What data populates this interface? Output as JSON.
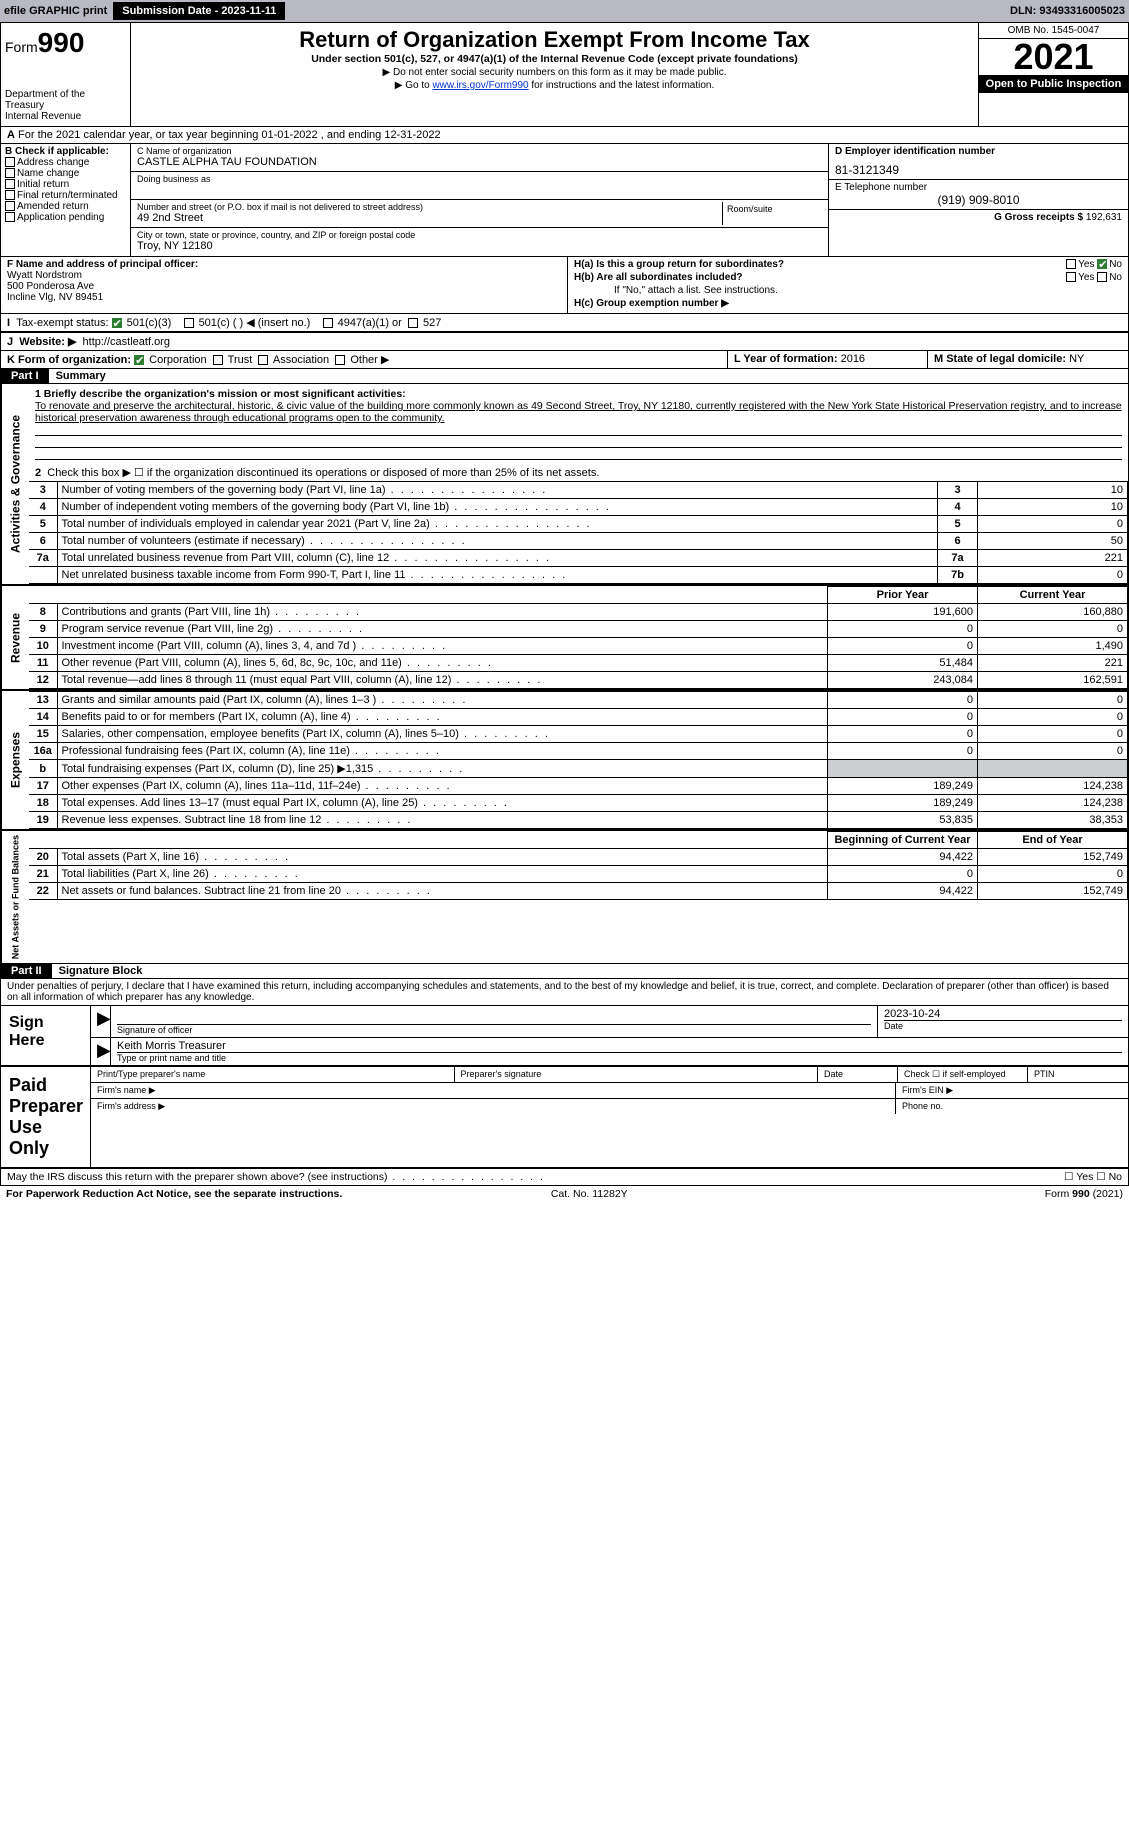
{
  "topbar": {
    "efile": "efile GRAPHIC print",
    "submission_label": "Submission Date - 2023-11-11",
    "dln_label": "DLN: 93493316005023"
  },
  "header": {
    "form_label": "Form",
    "form_num": "990",
    "dept": "Department of the Treasury",
    "irs": "Internal Revenue",
    "title": "Return of Organization Exempt From Income Tax",
    "subtitle": "Under section 501(c), 527, or 4947(a)(1) of the Internal Revenue Code (except private foundations)",
    "warn": "▶ Do not enter social security numbers on this form as it may be made public.",
    "goto_pre": "▶ Go to ",
    "goto_link": "www.irs.gov/Form990",
    "goto_post": " for instructions and the latest information.",
    "omb": "OMB No. 1545-0047",
    "year": "2021",
    "open": "Open to Public Inspection"
  },
  "A": {
    "text": "For the 2021 calendar year, or tax year beginning 01-01-2022    , and ending 12-31-2022"
  },
  "B": {
    "hdr": "B Check if applicable:",
    "opts": [
      "Address change",
      "Name change",
      "Initial return",
      "Final return/terminated",
      "Amended return",
      "Application pending"
    ]
  },
  "C": {
    "name_lbl": "C Name of organization",
    "name": "CASTLE ALPHA TAU FOUNDATION",
    "dba_lbl": "Doing business as",
    "dba": "",
    "street_lbl": "Number and street (or P.O. box if mail is not delivered to street address)",
    "room_lbl": "Room/suite",
    "street": "49 2nd Street",
    "city_lbl": "City or town, state or province, country, and ZIP or foreign postal code",
    "city": "Troy, NY  12180"
  },
  "D": {
    "lbl": "D Employer identification number",
    "val": "81-3121349"
  },
  "E": {
    "lbl": "E Telephone number",
    "val": "(919) 909-8010"
  },
  "G": {
    "lbl": "G Gross receipts $",
    "val": "192,631"
  },
  "F": {
    "lbl": "F  Name and address of principal officer:",
    "name": "Wyatt Nordstrom",
    "addr1": "500 Ponderosa Ave",
    "addr2": "Incline Vlg, NV  89451"
  },
  "H": {
    "a_lbl": "H(a)  Is this a group return for subordinates?",
    "b_lbl": "H(b)  Are all subordinates included?",
    "b_note": "If \"No,\" attach a list. See instructions.",
    "c_lbl": "H(c)  Group exemption number ▶"
  },
  "I": {
    "lbl": "Tax-exempt status:",
    "opts": [
      "501(c)(3)",
      "501(c) (   ) ◀ (insert no.)",
      "4947(a)(1) or",
      "527"
    ]
  },
  "J": {
    "lbl": "Website: ▶",
    "val": "http://castleatf.org"
  },
  "K": {
    "lbl": "K Form of organization:",
    "opts": [
      "Corporation",
      "Trust",
      "Association",
      "Other ▶"
    ]
  },
  "L": {
    "lbl": "L Year of formation:",
    "val": "2016"
  },
  "M": {
    "lbl": "M State of legal domicile:",
    "val": "NY"
  },
  "part1": {
    "hdr": "Part I",
    "title": "Summary",
    "line1_lbl": "1  Briefly describe the organization's mission or most significant activities:",
    "mission": "To renovate and preserve the architectural, historic, & civic value of the building more commonly known as 49 Second Street, Troy, NY 12180, currently registered with the New York State Historical Preservation registry, and to increase historical preservation awareness through educational programs open to the community.",
    "line2": "Check this box ▶ ☐  if the organization discontinued its operations or disposed of more than 25% of its net assets.",
    "vtab_gov": "Activities & Governance",
    "vtab_rev": "Revenue",
    "vtab_exp": "Expenses",
    "vtab_net": "Net Assets or Fund Balances",
    "rows_gov": [
      {
        "n": "3",
        "d": "Number of voting members of the governing body (Part VI, line 1a)",
        "k": "3",
        "v": "10"
      },
      {
        "n": "4",
        "d": "Number of independent voting members of the governing body (Part VI, line 1b)",
        "k": "4",
        "v": "10"
      },
      {
        "n": "5",
        "d": "Total number of individuals employed in calendar year 2021 (Part V, line 2a)",
        "k": "5",
        "v": "0"
      },
      {
        "n": "6",
        "d": "Total number of volunteers (estimate if necessary)",
        "k": "6",
        "v": "50"
      },
      {
        "n": "7a",
        "d": "Total unrelated business revenue from Part VIII, column (C), line 12",
        "k": "7a",
        "v": "221"
      },
      {
        "n": "",
        "d": "Net unrelated business taxable income from Form 990-T, Part I, line 11",
        "k": "7b",
        "v": "0"
      }
    ],
    "colhdr_prior": "Prior Year",
    "colhdr_curr": "Current Year",
    "rows_rev": [
      {
        "n": "8",
        "d": "Contributions and grants (Part VIII, line 1h)",
        "p": "191,600",
        "c": "160,880"
      },
      {
        "n": "9",
        "d": "Program service revenue (Part VIII, line 2g)",
        "p": "0",
        "c": "0"
      },
      {
        "n": "10",
        "d": "Investment income (Part VIII, column (A), lines 3, 4, and 7d )",
        "p": "0",
        "c": "1,490"
      },
      {
        "n": "11",
        "d": "Other revenue (Part VIII, column (A), lines 5, 6d, 8c, 9c, 10c, and 11e)",
        "p": "51,484",
        "c": "221"
      },
      {
        "n": "12",
        "d": "Total revenue—add lines 8 through 11 (must equal Part VIII, column (A), line 12)",
        "p": "243,084",
        "c": "162,591"
      }
    ],
    "rows_exp": [
      {
        "n": "13",
        "d": "Grants and similar amounts paid (Part IX, column (A), lines 1–3 )",
        "p": "0",
        "c": "0"
      },
      {
        "n": "14",
        "d": "Benefits paid to or for members (Part IX, column (A), line 4)",
        "p": "0",
        "c": "0"
      },
      {
        "n": "15",
        "d": "Salaries, other compensation, employee benefits (Part IX, column (A), lines 5–10)",
        "p": "0",
        "c": "0"
      },
      {
        "n": "16a",
        "d": "Professional fundraising fees (Part IX, column (A), line 11e)",
        "p": "0",
        "c": "0"
      },
      {
        "n": "b",
        "d": "Total fundraising expenses (Part IX, column (D), line 25) ▶1,315",
        "p": "",
        "c": "",
        "shade": true
      },
      {
        "n": "17",
        "d": "Other expenses (Part IX, column (A), lines 11a–11d, 11f–24e)",
        "p": "189,249",
        "c": "124,238"
      },
      {
        "n": "18",
        "d": "Total expenses. Add lines 13–17 (must equal Part IX, column (A), line 25)",
        "p": "189,249",
        "c": "124,238"
      },
      {
        "n": "19",
        "d": "Revenue less expenses. Subtract line 18 from line 12",
        "p": "53,835",
        "c": "38,353"
      }
    ],
    "colhdr_beg": "Beginning of Current Year",
    "colhdr_end": "End of Year",
    "rows_net": [
      {
        "n": "20",
        "d": "Total assets (Part X, line 16)",
        "p": "94,422",
        "c": "152,749"
      },
      {
        "n": "21",
        "d": "Total liabilities (Part X, line 26)",
        "p": "0",
        "c": "0"
      },
      {
        "n": "22",
        "d": "Net assets or fund balances. Subtract line 21 from line 20",
        "p": "94,422",
        "c": "152,749"
      }
    ]
  },
  "part2": {
    "hdr": "Part II",
    "title": "Signature Block",
    "decl": "Under penalties of perjury, I declare that I have examined this return, including accompanying schedules and statements, and to the best of my knowledge and belief, it is true, correct, and complete. Declaration of preparer (other than officer) is based on all information of which preparer has any knowledge.",
    "sign_here": "Sign Here",
    "sig_officer": "Signature of officer",
    "date_lbl": "Date",
    "sig_date": "2023-10-24",
    "name_title": "Keith Morris  Treasurer",
    "name_title_lbl": "Type or print name and title",
    "paid": "Paid Preparer Use Only",
    "prep_name": "Print/Type preparer's name",
    "prep_sig": "Preparer's signature",
    "check_self": "Check ☐ if self-employed",
    "ptin": "PTIN",
    "firm_name": "Firm's name  ▶",
    "firm_ein": "Firm's EIN ▶",
    "firm_addr": "Firm's address ▶",
    "phone": "Phone no.",
    "discuss": "May the IRS discuss this return with the preparer shown above? (see instructions)",
    "yesno": "☐ Yes  ☐ No"
  },
  "footer": {
    "pra": "For Paperwork Reduction Act Notice, see the separate instructions.",
    "cat": "Cat. No. 11282Y",
    "form": "Form 990 (2021)"
  }
}
